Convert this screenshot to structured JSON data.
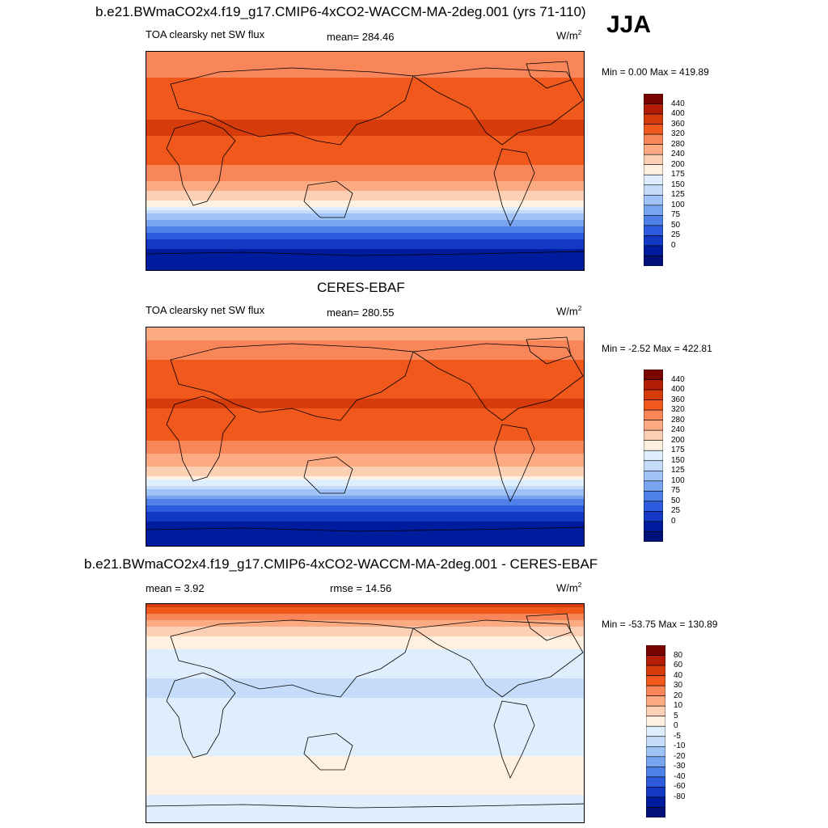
{
  "season": "JJA",
  "panels": [
    {
      "title": "b.e21.BWmaCO2x4.f19_g17.CMIP6-4xCO2-WACCM-MA-2deg.001 (yrs 71-110)",
      "left": "TOA clearsky net SW flux",
      "center": "mean= 284.46",
      "units": "W/m",
      "units_sup": "2",
      "minmax": "Min =   0.00 Max = 419.89",
      "colorbar": {
        "colors": [
          "#7a0402",
          "#b51e06",
          "#d63b0c",
          "#f0581c",
          "#f88659",
          "#fbaa82",
          "#fcd0b5",
          "#fff0e0",
          "#dfeefc",
          "#c4dcfa",
          "#9fc3f7",
          "#78a4f0",
          "#4f80e8",
          "#2c5bdd",
          "#1338c3",
          "#001c9e",
          "#00117a"
        ],
        "labels": [
          "440",
          "400",
          "360",
          "320",
          "280",
          "240",
          "200",
          "175",
          "150",
          "125",
          "100",
          "75",
          "50",
          "25",
          "0"
        ]
      }
    },
    {
      "title": "CERES-EBAF",
      "left": "TOA clearsky net SW flux",
      "center": "mean= 280.55",
      "units": "W/m",
      "units_sup": "2",
      "minmax": "Min =  -2.52 Max = 422.81",
      "colorbar": {
        "colors": [
          "#7a0402",
          "#b51e06",
          "#d63b0c",
          "#f0581c",
          "#f88659",
          "#fbaa82",
          "#fcd0b5",
          "#fff0e0",
          "#dfeefc",
          "#c4dcfa",
          "#9fc3f7",
          "#78a4f0",
          "#4f80e8",
          "#2c5bdd",
          "#1338c3",
          "#001c9e",
          "#00117a"
        ],
        "labels": [
          "440",
          "400",
          "360",
          "320",
          "280",
          "240",
          "200",
          "175",
          "150",
          "125",
          "100",
          "75",
          "50",
          "25",
          "0"
        ]
      }
    },
    {
      "title": "b.e21.BWmaCO2x4.f19_g17.CMIP6-4xCO2-WACCM-MA-2deg.001 - CERES-EBAF",
      "left": "mean =   3.92",
      "center": "rmse =  14.56",
      "units": "W/m",
      "units_sup": "2",
      "minmax": "Min = -53.75 Max = 130.89",
      "colorbar": {
        "colors": [
          "#7a0402",
          "#b51e06",
          "#d63b0c",
          "#f0581c",
          "#f88659",
          "#fbaa82",
          "#fcd0b5",
          "#fff0e0",
          "#dfeefc",
          "#c4dcfa",
          "#9fc3f7",
          "#78a4f0",
          "#4f80e8",
          "#2c5bdd",
          "#1338c3",
          "#001c9e",
          "#00117a"
        ],
        "labels": [
          "80",
          "60",
          "40",
          "30",
          "20",
          "10",
          "5",
          "0",
          "-5",
          "-10",
          "-20",
          "-30",
          "-40",
          "-60",
          "-80"
        ]
      }
    }
  ],
  "chart_data": [
    {
      "type": "heatmap",
      "title": "b.e21.BWmaCO2x4.f19_g17.CMIP6-4xCO2-WACCM-MA-2deg.001 (yrs 71-110)",
      "variable": "TOA clearsky net SW flux",
      "season": "JJA",
      "units": "W/m2",
      "mean": 284.46,
      "min": 0.0,
      "max": 419.89,
      "levels": [
        0,
        25,
        50,
        75,
        100,
        125,
        150,
        175,
        200,
        240,
        280,
        320,
        360,
        400,
        440
      ],
      "zonal_profile": {
        "lat": [
          90,
          80,
          70,
          60,
          50,
          40,
          30,
          20,
          10,
          0,
          -10,
          -20,
          -30,
          -40,
          -50,
          -60,
          -70,
          -80,
          -90
        ],
        "value": [
          330,
          345,
          360,
          370,
          380,
          395,
          405,
          400,
          385,
          365,
          340,
          300,
          250,
          170,
          110,
          60,
          30,
          10,
          5
        ]
      }
    },
    {
      "type": "heatmap",
      "title": "CERES-EBAF",
      "variable": "TOA clearsky net SW flux",
      "season": "JJA",
      "units": "W/m2",
      "mean": 280.55,
      "min": -2.52,
      "max": 422.81,
      "levels": [
        0,
        25,
        50,
        75,
        100,
        125,
        150,
        175,
        200,
        240,
        280,
        320,
        360,
        400,
        440
      ],
      "zonal_profile": {
        "lat": [
          90,
          80,
          70,
          60,
          50,
          40,
          30,
          20,
          10,
          0,
          -10,
          -20,
          -30,
          -40,
          -50,
          -60,
          -70,
          -80,
          -90
        ],
        "value": [
          300,
          320,
          345,
          365,
          378,
          392,
          402,
          398,
          384,
          364,
          338,
          298,
          245,
          165,
          105,
          55,
          25,
          10,
          5
        ]
      }
    },
    {
      "type": "heatmap",
      "title": "b.e21.BWmaCO2x4.f19_g17.CMIP6-4xCO2-WACCM-MA-2deg.001 - CERES-EBAF",
      "variable": "TOA clearsky net SW flux difference",
      "season": "JJA",
      "units": "W/m2",
      "mean": 3.92,
      "rmse": 14.56,
      "min": -53.75,
      "max": 130.89,
      "levels": [
        -80,
        -60,
        -40,
        -30,
        -20,
        -10,
        -5,
        0,
        5,
        10,
        20,
        30,
        40,
        60,
        80
      ],
      "zonal_profile": {
        "lat": [
          90,
          80,
          70,
          60,
          50,
          40,
          30,
          20,
          10,
          0,
          -10,
          -20,
          -30,
          -40,
          -50,
          -60,
          -70,
          -80,
          -90
        ],
        "value": [
          70,
          35,
          15,
          8,
          4,
          2,
          0,
          -2,
          1,
          2,
          2,
          3,
          4,
          6,
          7,
          8,
          3,
          1,
          0
        ]
      }
    }
  ]
}
